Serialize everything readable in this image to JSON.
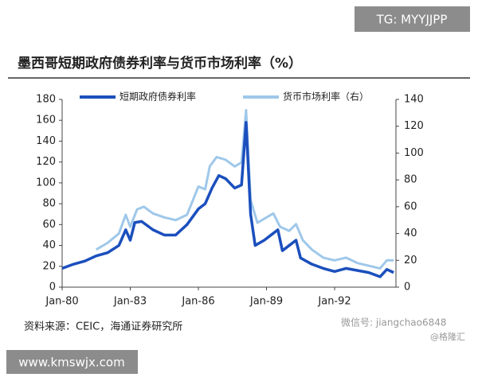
{
  "chart_data": {
    "type": "line",
    "title": "墨西哥短期政府债券利率与货币市场利率（%）",
    "source": "资料来源：CEIC，海通证券研究所",
    "xlim": [
      1980,
      1994.7
    ],
    "xticks": [
      {
        "value": 1980,
        "label": "Jan-80"
      },
      {
        "value": 1983,
        "label": "Jan-83"
      },
      {
        "value": 1986,
        "label": "Jan-86"
      },
      {
        "value": 1989,
        "label": "Jan-89"
      },
      {
        "value": 1992,
        "label": "Jan-92"
      }
    ],
    "ylim": [
      0,
      180
    ],
    "yticks": [
      0,
      20,
      40,
      60,
      80,
      100,
      120,
      140,
      160,
      180
    ],
    "y2lim": [
      0,
      140
    ],
    "y2ticks": [
      0,
      20,
      40,
      60,
      80,
      100,
      120,
      140
    ],
    "series": [
      {
        "name": "短期政府债券利率",
        "color": "#1b4fbd",
        "x": [
          1980.0,
          1980.5,
          1981.0,
          1981.5,
          1982.0,
          1982.5,
          1982.8,
          1983.0,
          1983.2,
          1983.5,
          1984.0,
          1984.5,
          1985.0,
          1985.5,
          1986.0,
          1986.3,
          1986.6,
          1986.9,
          1987.2,
          1987.6,
          1987.9,
          1988.1,
          1988.3,
          1988.5,
          1988.9,
          1989.2,
          1989.5,
          1989.7,
          1990.0,
          1990.3,
          1990.5,
          1991.0,
          1991.5,
          1992.0,
          1992.5,
          1993.0,
          1993.5,
          1994.0,
          1994.3,
          1994.6
        ],
        "values": [
          18,
          22,
          25,
          30,
          33,
          40,
          55,
          45,
          62,
          63,
          55,
          50,
          50,
          60,
          75,
          80,
          95,
          107,
          104,
          95,
          98,
          158,
          70,
          40,
          45,
          50,
          55,
          35,
          40,
          45,
          28,
          22,
          18,
          15,
          18,
          16,
          14,
          10,
          17,
          14
        ]
      },
      {
        "name": "货币市场利率（右）",
        "color": "#9fc8ea",
        "axis": "y2",
        "x": [
          1981.5,
          1982.0,
          1982.5,
          1982.8,
          1983.0,
          1983.3,
          1983.6,
          1984.0,
          1984.5,
          1985.0,
          1985.5,
          1986.0,
          1986.3,
          1986.5,
          1986.8,
          1987.2,
          1987.6,
          1987.9,
          1988.1,
          1988.3,
          1988.6,
          1989.0,
          1989.3,
          1989.6,
          1990.0,
          1990.3,
          1990.6,
          1991.0,
          1991.5,
          1992.0,
          1992.5,
          1993.0,
          1993.5,
          1994.0,
          1994.3,
          1994.6
        ],
        "values": [
          28,
          33,
          40,
          54,
          45,
          58,
          60,
          55,
          52,
          50,
          54,
          75,
          73,
          90,
          97,
          95,
          90,
          93,
          132,
          65,
          48,
          52,
          55,
          45,
          42,
          47,
          35,
          28,
          22,
          20,
          22,
          18,
          16,
          14,
          20,
          20
        ]
      }
    ]
  },
  "watermarks": {
    "top": "TG: MYYJJPP",
    "bottom": "www.kmswjx.com",
    "wechat": "微信号: jiangchao6848",
    "brand": "@格隆汇"
  }
}
